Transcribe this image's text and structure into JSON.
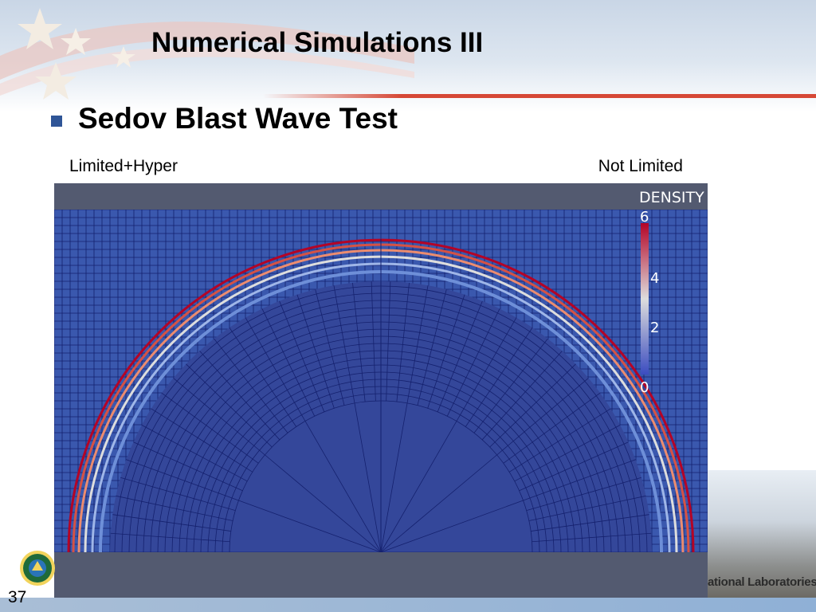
{
  "slide": {
    "title": "Numerical Simulations III",
    "bullet": "Sedov Blast Wave Test",
    "page_number": "37"
  },
  "figure": {
    "left_label": "Limited+Hyper",
    "right_label": "Not Limited",
    "colorbar": {
      "title": "DENSITY",
      "ticks": [
        "6",
        "4",
        "2",
        "0"
      ],
      "range": [
        0,
        6
      ],
      "colors": [
        "#3b4cc0",
        "#dddddd",
        "#b40426"
      ]
    },
    "mesh_color": "#15216e",
    "field_color": "#3a58ae",
    "frame_color": "#535a70"
  },
  "footer": {
    "text": "ational Laboratories"
  }
}
